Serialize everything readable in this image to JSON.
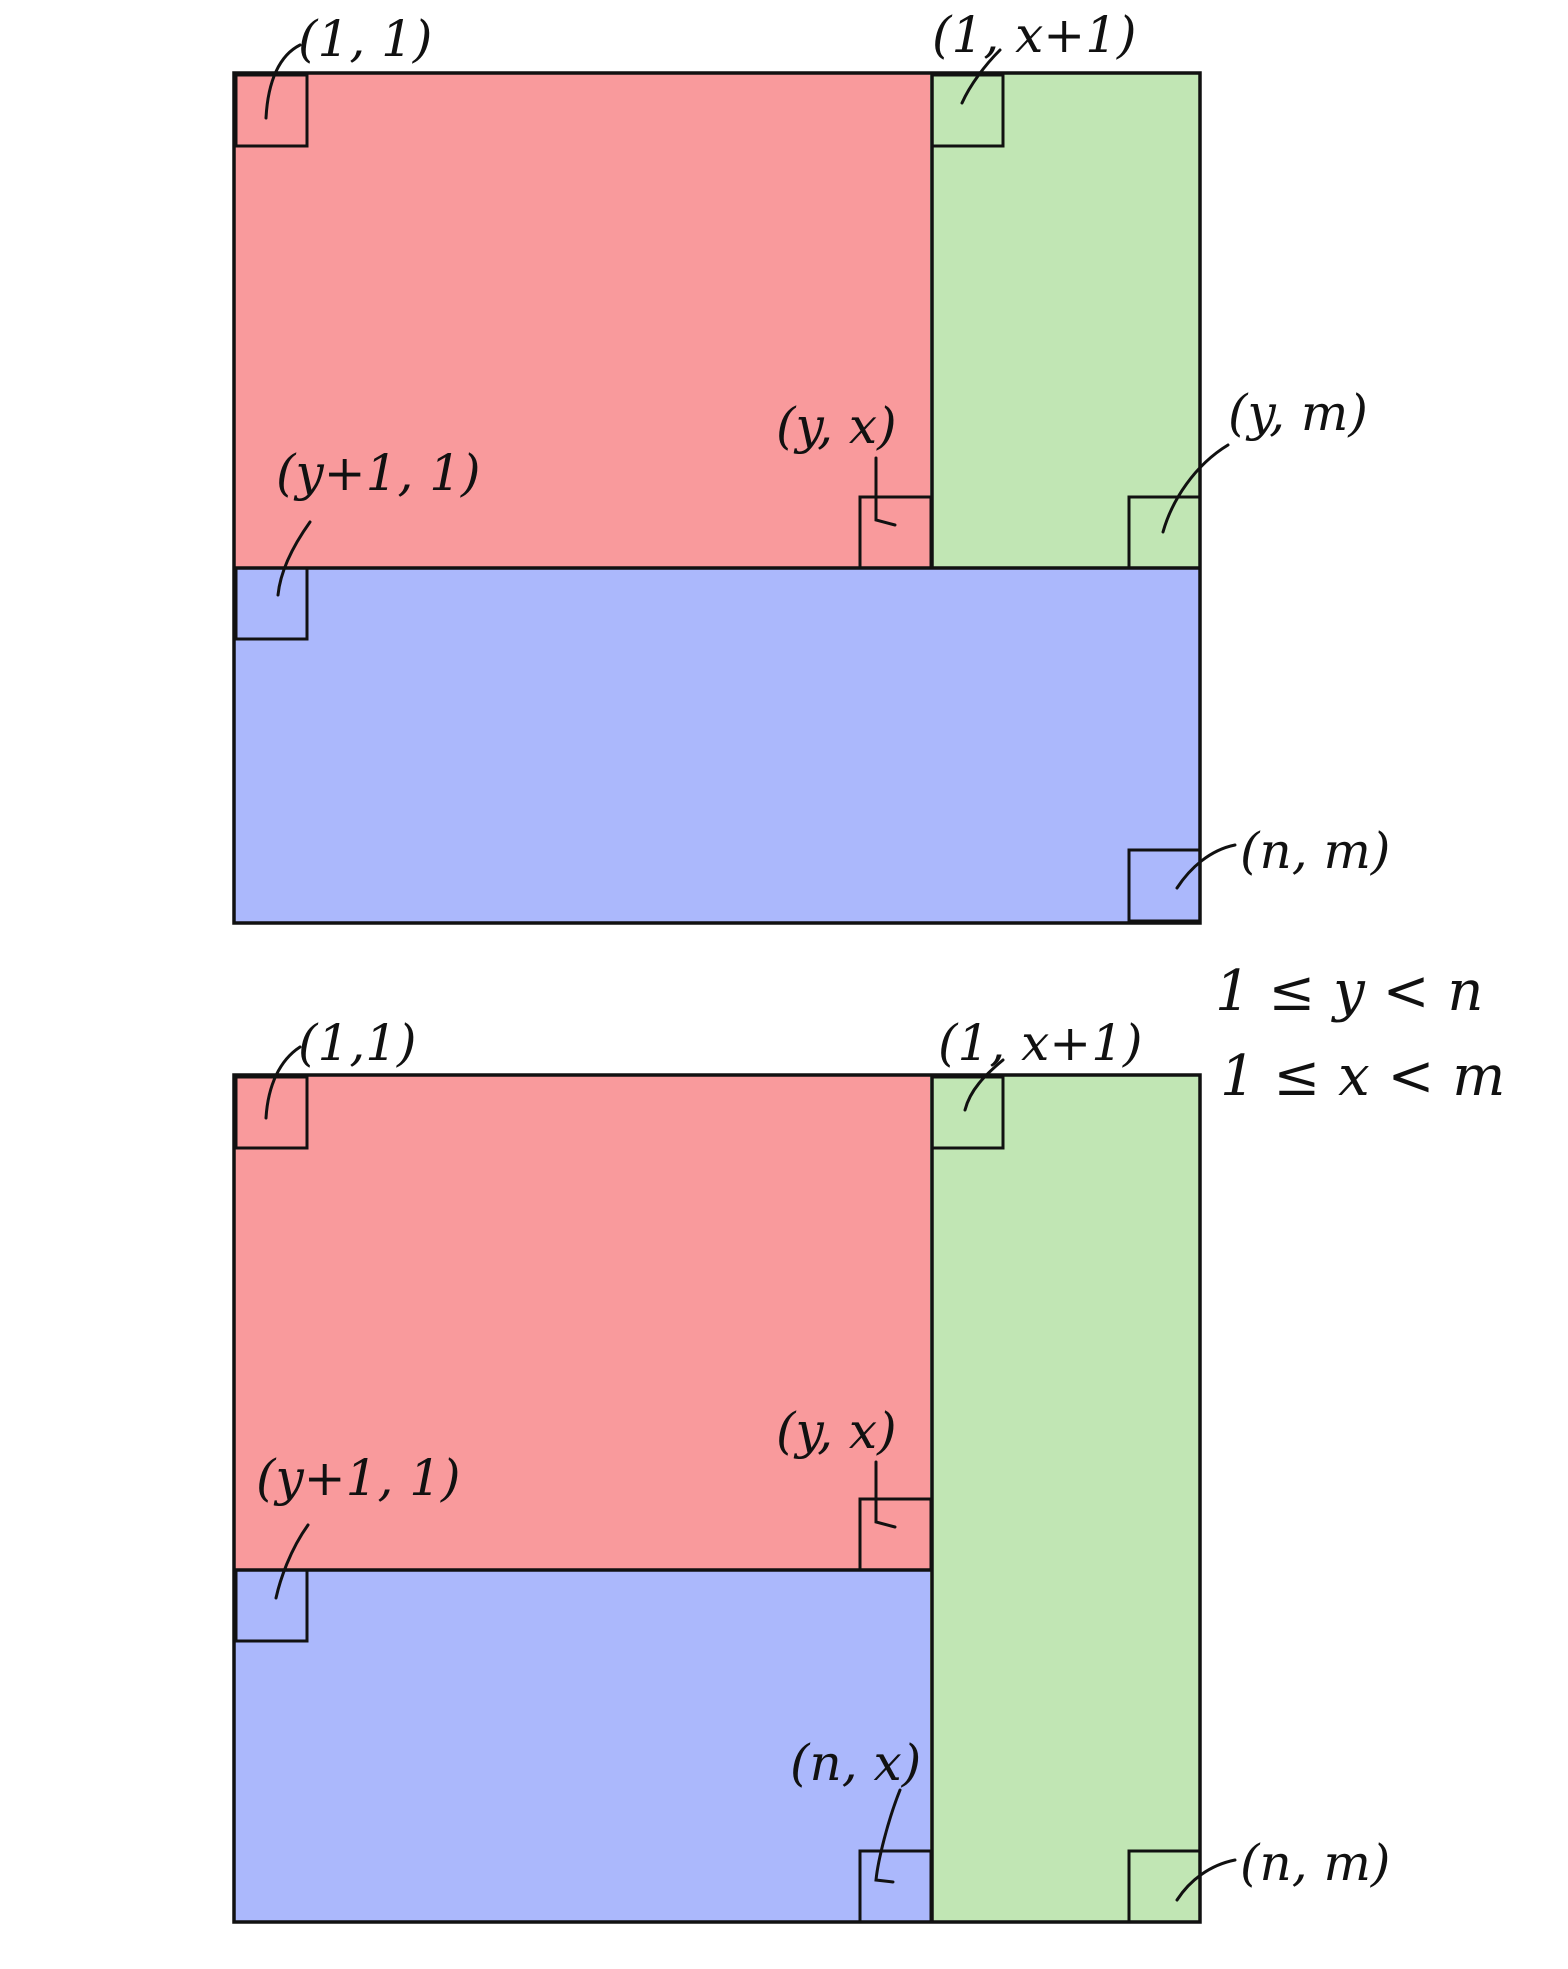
{
  "colors": {
    "red": "#F99A9C",
    "green": "#C1E6B4",
    "blue": "#ABB8FC",
    "ink": "#111111"
  },
  "diagram_top": {
    "labels": {
      "a": "(1, 1)",
      "b": "(1, x+1)",
      "c": "(y, x)",
      "d": "(y, m)",
      "e": "(y+1, 1)",
      "f": "(n, m)"
    }
  },
  "diagram_bottom": {
    "labels": {
      "a": "(1,1)",
      "b": "(1, x+1)",
      "c": "(y, x)",
      "e": "(y+1, 1)",
      "g": "(n, x)",
      "f": "(n, m)"
    }
  },
  "conditions": {
    "line1": "1 ≤ y < n",
    "line2": "1 ≤ x < m"
  }
}
